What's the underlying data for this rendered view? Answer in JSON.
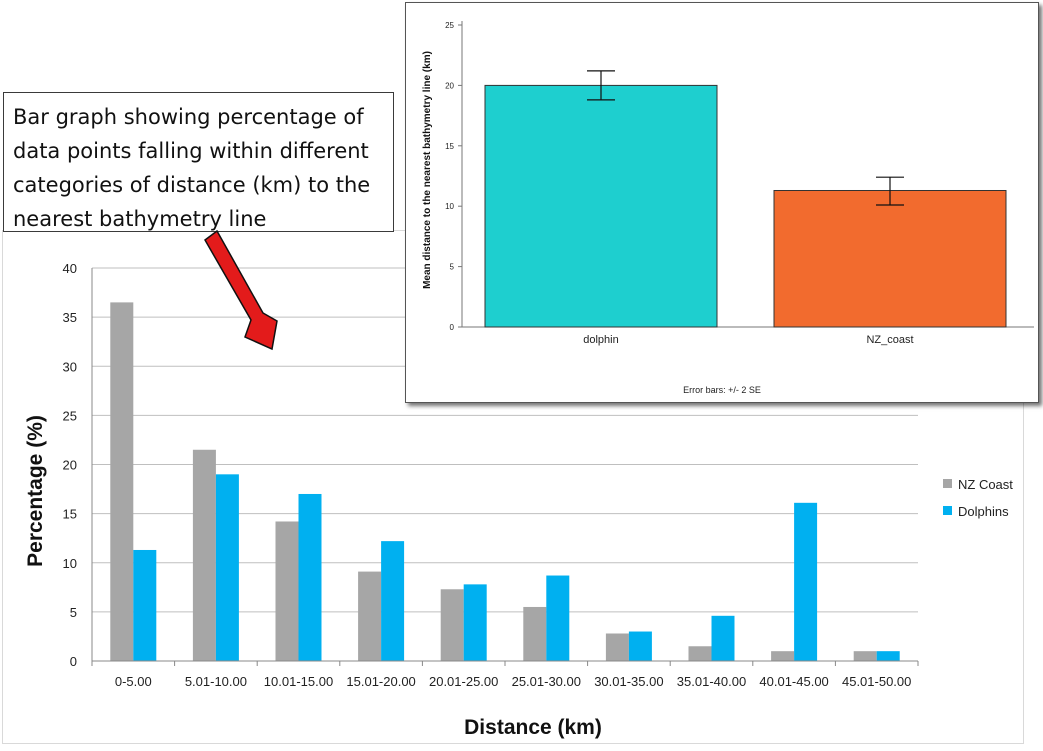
{
  "callout": {
    "text": "Bar graph showing percentage of data points falling within different categories of distance (km) to the nearest bathymetry line"
  },
  "colors": {
    "nz_coast": "#a6a6a6",
    "dolphins": "#00b0f0",
    "inset_dolphin": "#1ecfcf",
    "inset_nz_coast": "#f26b2e",
    "arrow": "#e31b1b",
    "gridline": "#bfbfbf"
  },
  "chart_data": [
    {
      "type": "bar",
      "xlabel": "Distance (km)",
      "ylabel": "Percentage (%)",
      "ylim": [
        0,
        40
      ],
      "yticks": [
        "0",
        "5",
        "10",
        "15",
        "20",
        "25",
        "30",
        "35",
        "40"
      ],
      "grid": true,
      "legend_position": "right",
      "categories": [
        "0-5.00",
        "5.01-10.00",
        "10.01-15.00",
        "15.01-20.00",
        "20.01-25.00",
        "25.01-30.00",
        "30.01-35.00",
        "35.01-40.00",
        "40.01-45.00",
        "45.01-50.00"
      ],
      "series": [
        {
          "name": "NZ Coast",
          "values": [
            36.5,
            21.5,
            14.2,
            9.1,
            7.3,
            5.5,
            2.8,
            1.5,
            1.0,
            1.0
          ]
        },
        {
          "name": "Dolphins",
          "values": [
            11.3,
            19.0,
            17.0,
            12.2,
            7.8,
            8.7,
            3.0,
            4.6,
            16.1,
            1.0
          ]
        }
      ]
    },
    {
      "type": "bar",
      "ylabel": "Mean distance to the nearest bathymetry line (km)",
      "ylim": [
        0,
        25
      ],
      "yticks": [
        "0",
        "5",
        "10",
        "15",
        "20",
        "25"
      ],
      "categories": [
        "dolphin",
        "NZ_coast"
      ],
      "values": [
        20.0,
        11.3
      ],
      "error_bars": [
        {
          "low": 18.8,
          "high": 21.2
        },
        {
          "low": 10.1,
          "high": 12.4
        }
      ],
      "footnote": "Error bars: +/- 2 SE",
      "grid": false
    }
  ]
}
